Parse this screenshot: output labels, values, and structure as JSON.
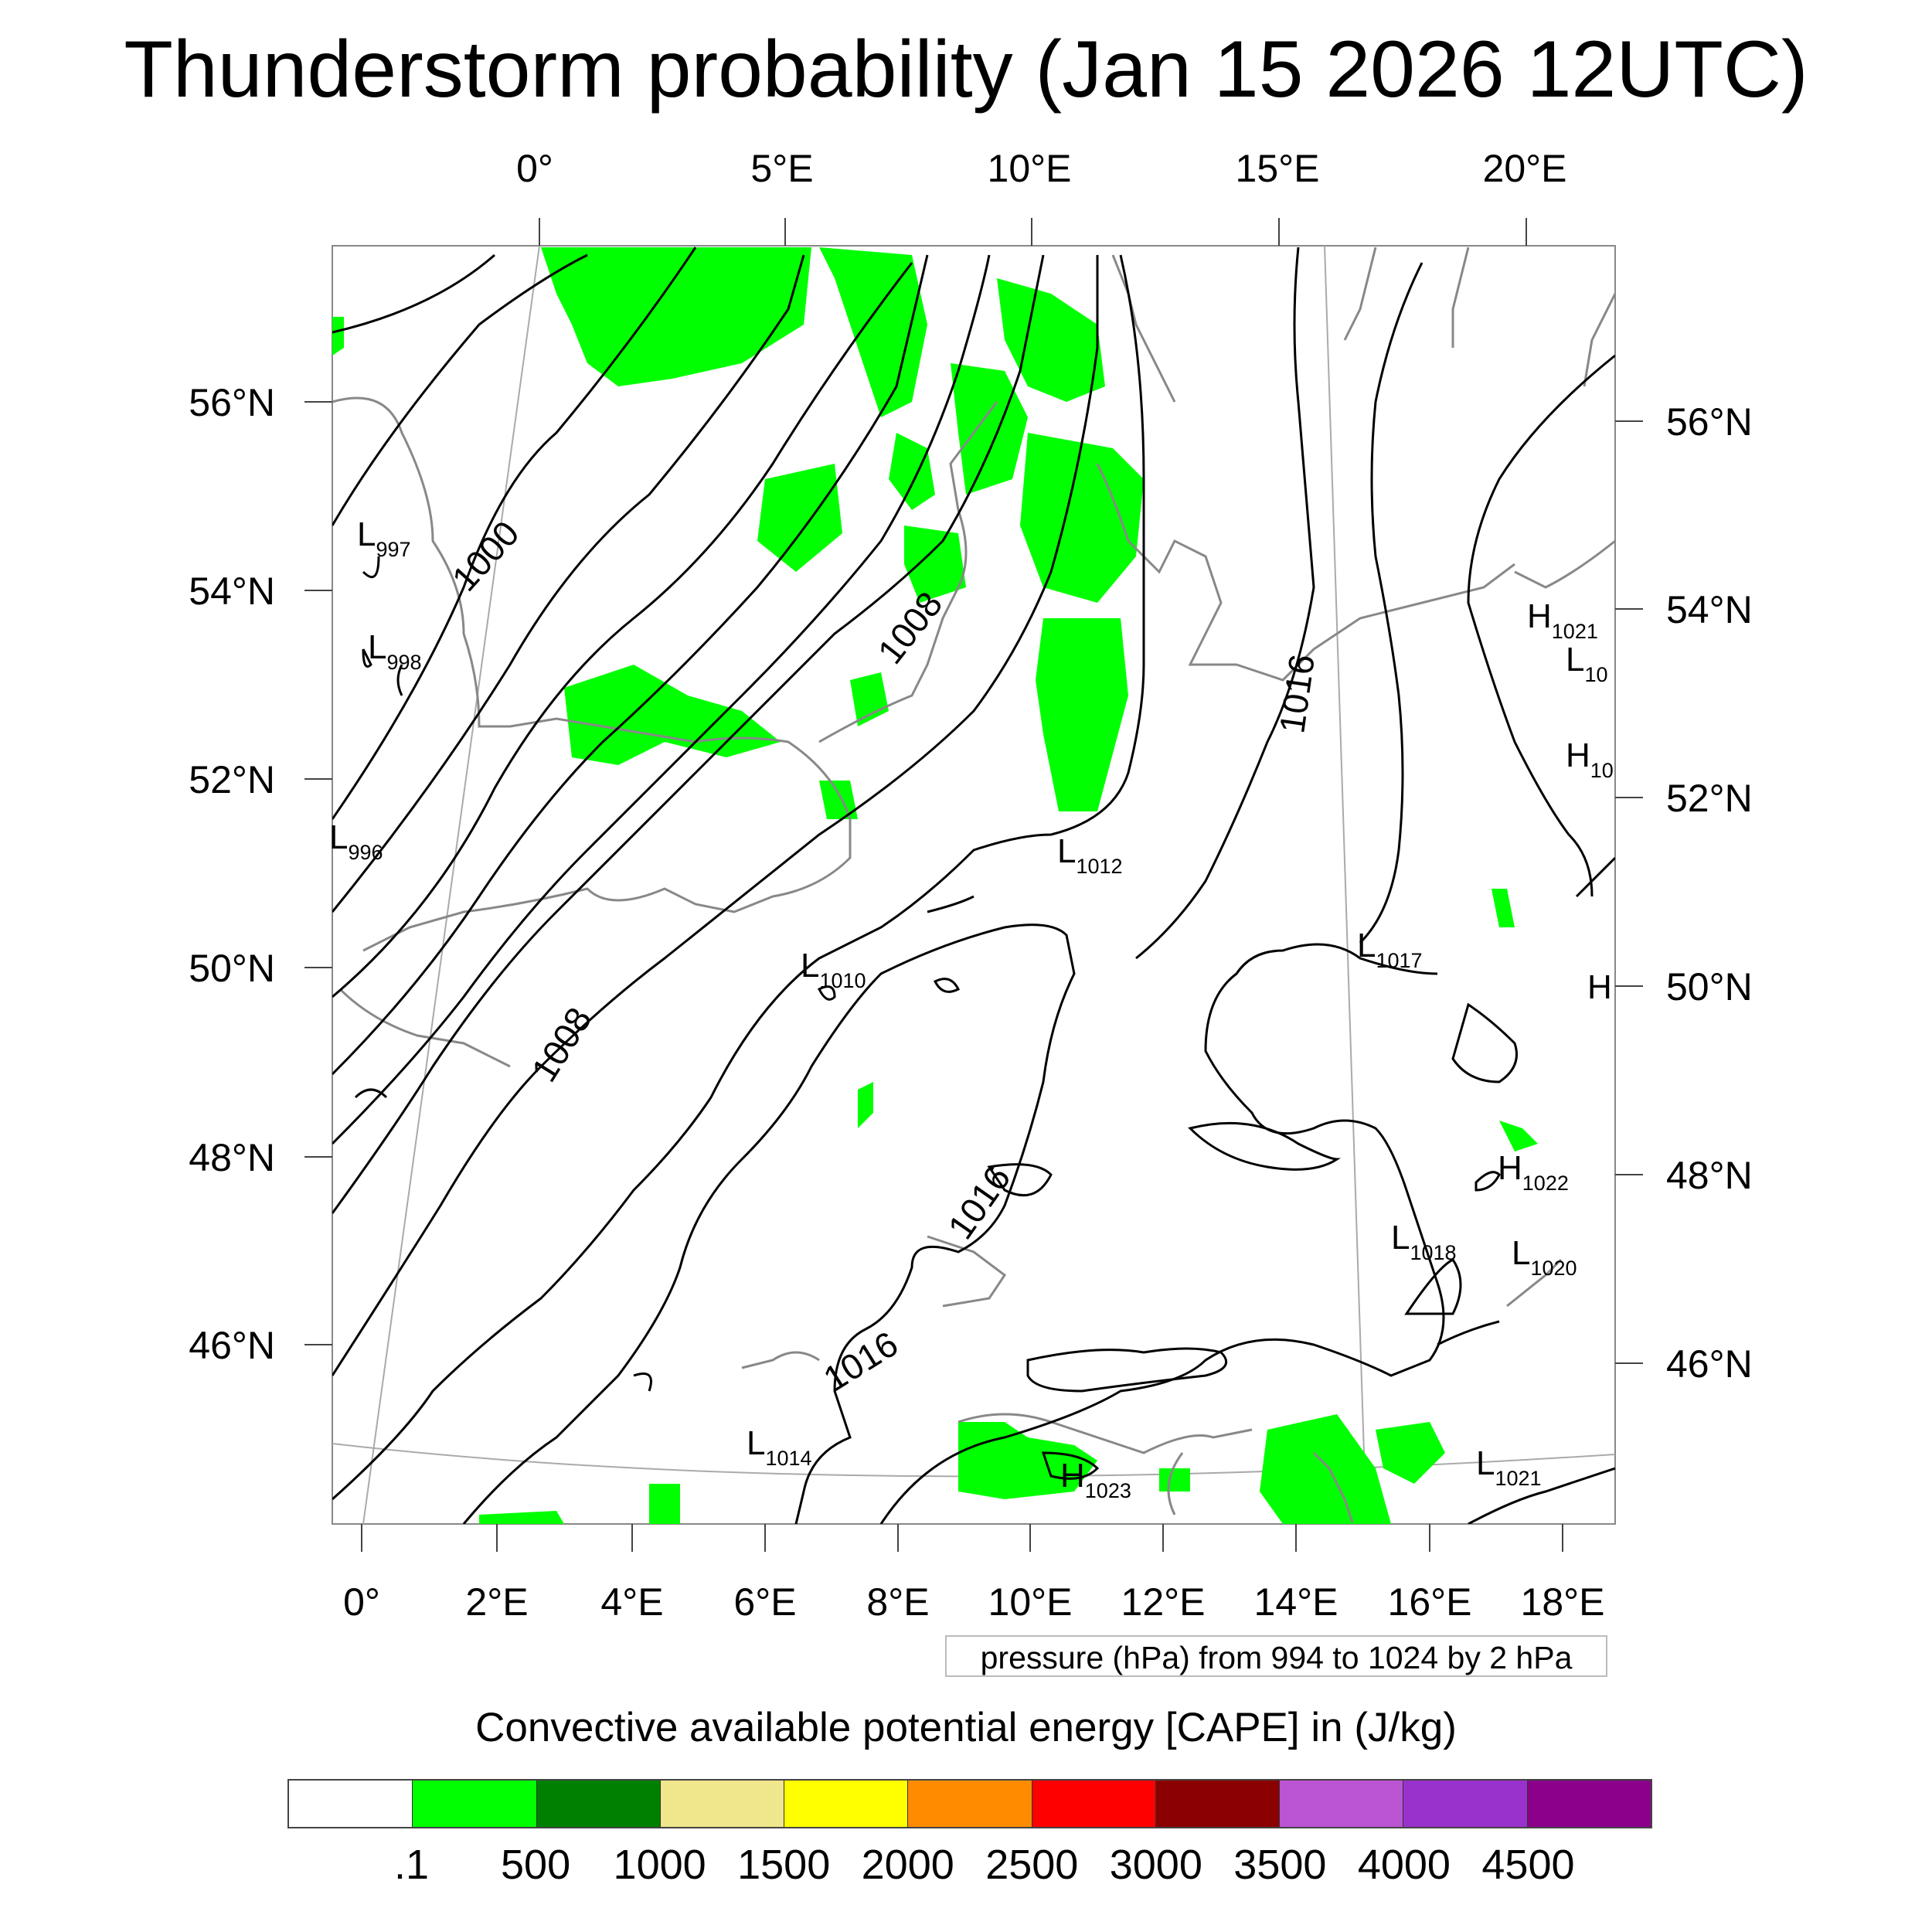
{
  "title": "Thunderstorm probability (Jan 15 2026 12UTC)",
  "map": {
    "top_lon_labels": [
      "0°",
      "5°E",
      "10°E",
      "15°E",
      "20°E"
    ],
    "bottom_lon_labels": [
      "0°",
      "2°E",
      "4°E",
      "6°E",
      "8°E",
      "10°E",
      "12°E",
      "14°E",
      "16°E",
      "18°E"
    ],
    "left_lat_labels": [
      "56°N",
      "54°N",
      "52°N",
      "50°N",
      "48°N",
      "46°N"
    ],
    "right_lat_labels": [
      "56°N",
      "54°N",
      "52°N",
      "50°N",
      "48°N",
      "46°N"
    ],
    "isobar_labels": [
      "1000",
      "1008",
      "1008",
      "1016",
      "1016",
      "1016"
    ],
    "pressure_centers": [
      {
        "type": "L",
        "value": "997"
      },
      {
        "type": "L",
        "value": "998"
      },
      {
        "type": "L",
        "value": "996"
      },
      {
        "type": "L",
        "value": "1012"
      },
      {
        "type": "L",
        "value": "1010"
      },
      {
        "type": "L",
        "value": "1017"
      },
      {
        "type": "H",
        "value": "1021"
      },
      {
        "type": "L",
        "value": "10"
      },
      {
        "type": "H",
        "value": "10"
      },
      {
        "type": "H",
        "value": ""
      },
      {
        "type": "H",
        "value": "1022"
      },
      {
        "type": "L",
        "value": "1018"
      },
      {
        "type": "L",
        "value": "1020"
      },
      {
        "type": "L",
        "value": "1014"
      },
      {
        "type": "H",
        "value": "1023"
      },
      {
        "type": "L",
        "value": "1021"
      }
    ],
    "colors": {
      "cape_low": "#00ff00",
      "isobar": "#000000",
      "coast": "#888888"
    }
  },
  "caption": "pressure (hPa) from 994 to 1024 by 2 hPa",
  "colorbar": {
    "title": "Convective available potential energy [CAPE] in (J/kg)",
    "colors": [
      "#ffffff",
      "#00ff00",
      "#008000",
      "#f0e68c",
      "#ffff00",
      "#ff8c00",
      "#ff0000",
      "#8b0000",
      "#ba55d3",
      "#9932cc",
      "#8b008b"
    ],
    "labels": [
      ".1",
      "500",
      "1000",
      "1500",
      "2000",
      "2500",
      "3000",
      "3500",
      "4000",
      "4500"
    ]
  }
}
